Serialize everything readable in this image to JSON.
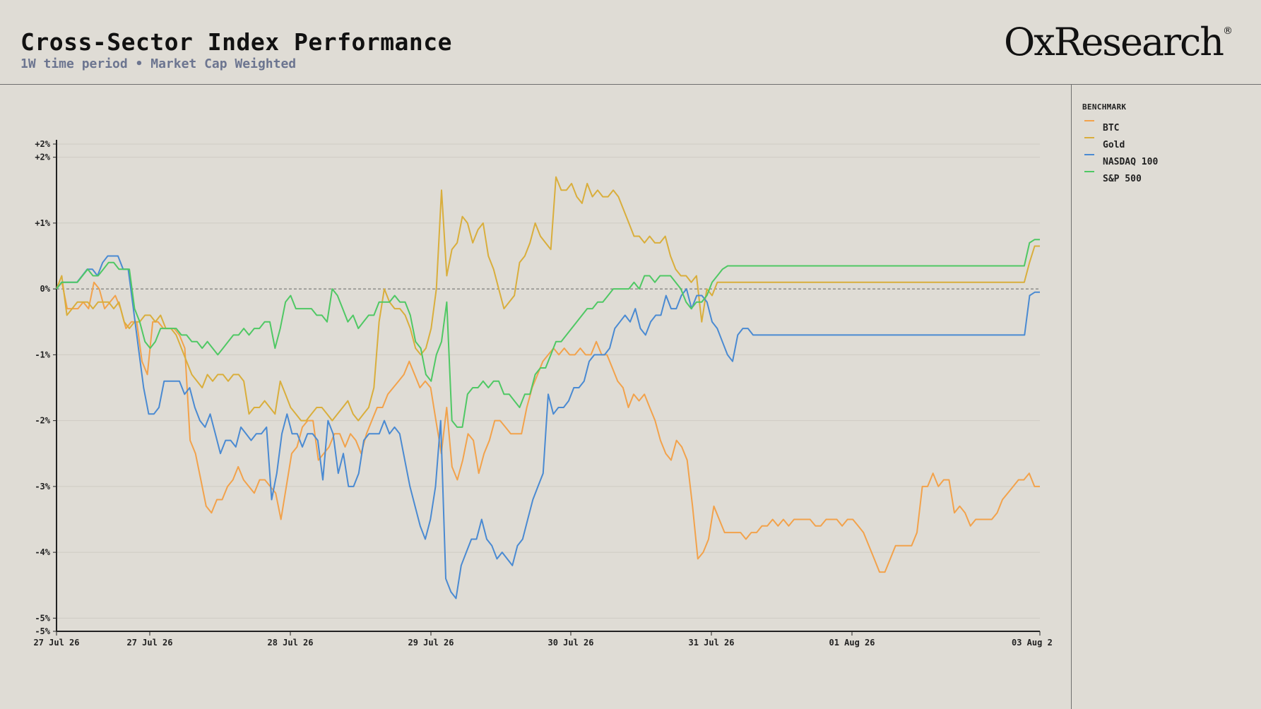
{
  "header": {
    "title": "Cross-Sector Index Performance",
    "subtitle": "1W time period • Market Cap Weighted",
    "logo_text": "OxResearch",
    "logo_mark": "®"
  },
  "legend": {
    "title": "BENCHMARK",
    "items": [
      {
        "label": "BTC",
        "color": "#f2a24b"
      },
      {
        "label": "Gold",
        "color": "#d9ae3c"
      },
      {
        "label": "NASDAQ 100",
        "color": "#4a8ad2"
      },
      {
        "label": "S&P 500",
        "color": "#4fc864"
      }
    ]
  },
  "chart_data": {
    "type": "line",
    "x_ticks": [
      "27 Jul 26",
      "27 Jul 26",
      "28 Jul 26",
      "29 Jul 26",
      "30 Jul 26",
      "31 Jul 26",
      "01 Aug 26",
      "03 Aug 2"
    ],
    "y_ticks": [
      {
        "value": 2.2,
        "label": "+2%"
      },
      {
        "value": 2.0,
        "label": "+2%"
      },
      {
        "value": 1.0,
        "label": "+1%"
      },
      {
        "value": 0.0,
        "label": "0%"
      },
      {
        "value": -1.0,
        "label": "-1%"
      },
      {
        "value": -2.0,
        "label": "-2%"
      },
      {
        "value": -3.0,
        "label": "-3%"
      },
      {
        "value": -4.0,
        "label": "-4%"
      },
      {
        "value": -5.0,
        "label": "-5%"
      },
      {
        "value": -5.2,
        "label": "-5%"
      }
    ],
    "ylim": [
      -5.2,
      2.2
    ],
    "zero_line": true,
    "grid": true,
    "legend_placement": "right",
    "series": [
      {
        "name": "BTC",
        "color": "#f2a24b",
        "values": [
          0.0,
          0.1,
          -0.3,
          -0.3,
          -0.3,
          -0.2,
          -0.3,
          0.1,
          0.0,
          -0.3,
          -0.2,
          -0.1,
          -0.3,
          -0.6,
          -0.5,
          -0.5,
          -1.1,
          -1.3,
          -0.5,
          -0.5,
          -0.6,
          -0.6,
          -0.6,
          -0.7,
          -0.9,
          -2.3,
          -2.5,
          -2.9,
          -3.3,
          -3.4,
          -3.2,
          -3.2,
          -3.0,
          -2.9,
          -2.7,
          -2.9,
          -3.0,
          -3.1,
          -2.9,
          -2.9,
          -3.0,
          -3.1,
          -3.5,
          -3.0,
          -2.5,
          -2.4,
          -2.1,
          -2.0,
          -2.0,
          -2.6,
          -2.5,
          -2.4,
          -2.2,
          -2.2,
          -2.4,
          -2.2,
          -2.3,
          -2.5,
          -2.2,
          -2.0,
          -1.8,
          -1.8,
          -1.6,
          -1.5,
          -1.4,
          -1.3,
          -1.1,
          -1.3,
          -1.5,
          -1.4,
          -1.5,
          -2.0,
          -2.5,
          -1.8,
          -2.7,
          -2.9,
          -2.6,
          -2.2,
          -2.3,
          -2.8,
          -2.5,
          -2.3,
          -2.0,
          -2.0,
          -2.1,
          -2.2,
          -2.2,
          -2.2,
          -1.8,
          -1.5,
          -1.3,
          -1.1,
          -1.0,
          -0.9,
          -1.0,
          -0.9,
          -1.0,
          -1.0,
          -0.9,
          -1.0,
          -1.0,
          -0.8,
          -1.0,
          -1.0,
          -1.2,
          -1.4,
          -1.5,
          -1.8,
          -1.6,
          -1.7,
          -1.6,
          -1.8,
          -2.0,
          -2.3,
          -2.5,
          -2.6,
          -2.3,
          -2.4,
          -2.6,
          -3.3,
          -4.1,
          -4.0,
          -3.8,
          -3.3,
          -3.5,
          -3.7,
          -3.7,
          -3.7,
          -3.7,
          -3.8,
          -3.7,
          -3.7,
          -3.6,
          -3.6,
          -3.5,
          -3.6,
          -3.5,
          -3.6,
          -3.5,
          -3.5,
          -3.5,
          -3.5,
          -3.6,
          -3.6,
          -3.5,
          -3.5,
          -3.5,
          -3.6,
          -3.5,
          -3.5,
          -3.6,
          -3.7,
          -3.9,
          -4.1,
          -4.3,
          -4.3,
          -4.1,
          -3.9,
          -3.9,
          -3.9,
          -3.9,
          -3.7,
          -3.0,
          -3.0,
          -2.8,
          -3.0,
          -2.9,
          -2.9,
          -3.4,
          -3.3,
          -3.4,
          -3.6,
          -3.5,
          -3.5,
          -3.5,
          -3.5,
          -3.4,
          -3.2,
          -3.1,
          -3.0,
          -2.9,
          -2.9,
          -2.8,
          -3.0,
          -3.0
        ]
      },
      {
        "name": "Gold",
        "color": "#d9ae3c",
        "values": [
          0.0,
          0.2,
          -0.4,
          -0.3,
          -0.2,
          -0.2,
          -0.2,
          -0.3,
          -0.2,
          -0.2,
          -0.2,
          -0.3,
          -0.2,
          -0.5,
          -0.6,
          -0.5,
          -0.5,
          -0.4,
          -0.4,
          -0.5,
          -0.4,
          -0.6,
          -0.6,
          -0.7,
          -0.9,
          -1.1,
          -1.3,
          -1.4,
          -1.5,
          -1.3,
          -1.4,
          -1.3,
          -1.3,
          -1.4,
          -1.3,
          -1.3,
          -1.4,
          -1.9,
          -1.8,
          -1.8,
          -1.7,
          -1.8,
          -1.9,
          -1.4,
          -1.6,
          -1.8,
          -1.9,
          -2.0,
          -2.0,
          -1.9,
          -1.8,
          -1.8,
          -1.9,
          -2.0,
          -1.9,
          -1.8,
          -1.7,
          -1.9,
          -2.0,
          -1.9,
          -1.8,
          -1.5,
          -0.5,
          0.0,
          -0.2,
          -0.3,
          -0.3,
          -0.4,
          -0.6,
          -0.9,
          -1.0,
          -0.9,
          -0.6,
          0.0,
          1.5,
          0.2,
          0.6,
          0.7,
          1.1,
          1.0,
          0.7,
          0.9,
          1.0,
          0.5,
          0.3,
          0.0,
          -0.3,
          -0.2,
          -0.1,
          0.4,
          0.5,
          0.7,
          1.0,
          0.8,
          0.7,
          0.6,
          1.7,
          1.5,
          1.5,
          1.6,
          1.4,
          1.3,
          1.6,
          1.4,
          1.5,
          1.4,
          1.4,
          1.5,
          1.4,
          1.2,
          1.0,
          0.8,
          0.8,
          0.7,
          0.8,
          0.7,
          0.7,
          0.8,
          0.5,
          0.3,
          0.2,
          0.2,
          0.1,
          0.2,
          -0.5,
          0.0,
          -0.1,
          0.1,
          0.1,
          0.1,
          0.1,
          0.1,
          0.1,
          0.1,
          0.1,
          0.1,
          0.1,
          0.1,
          0.1,
          0.1,
          0.1,
          0.1,
          0.1,
          0.1,
          0.1,
          0.1,
          0.1,
          0.1,
          0.1,
          0.1,
          0.1,
          0.1,
          0.1,
          0.1,
          0.1,
          0.1,
          0.1,
          0.1,
          0.1,
          0.1,
          0.1,
          0.1,
          0.1,
          0.1,
          0.1,
          0.1,
          0.1,
          0.1,
          0.1,
          0.1,
          0.1,
          0.1,
          0.1,
          0.1,
          0.1,
          0.1,
          0.1,
          0.1,
          0.1,
          0.1,
          0.1,
          0.1,
          0.1,
          0.1,
          0.1,
          0.1,
          0.1,
          0.4,
          0.65,
          0.65
        ]
      },
      {
        "name": "NASDAQ 100",
        "color": "#4a8ad2",
        "values": [
          0.0,
          0.1,
          0.1,
          0.1,
          0.1,
          0.2,
          0.3,
          0.3,
          0.2,
          0.4,
          0.5,
          0.5,
          0.5,
          0.3,
          0.3,
          -0.3,
          -0.9,
          -1.5,
          -1.9,
          -1.9,
          -1.8,
          -1.4,
          -1.4,
          -1.4,
          -1.4,
          -1.6,
          -1.5,
          -1.8,
          -2.0,
          -2.1,
          -1.9,
          -2.2,
          -2.5,
          -2.3,
          -2.3,
          -2.4,
          -2.1,
          -2.2,
          -2.3,
          -2.2,
          -2.2,
          -2.1,
          -3.2,
          -2.8,
          -2.2,
          -1.9,
          -2.2,
          -2.2,
          -2.4,
          -2.2,
          -2.2,
          -2.3,
          -2.9,
          -2.0,
          -2.2,
          -2.8,
          -2.5,
          -3.0,
          -3.0,
          -2.8,
          -2.3,
          -2.2,
          -2.2,
          -2.2,
          -2.0,
          -2.2,
          -2.1,
          -2.2,
          -2.6,
          -3.0,
          -3.3,
          -3.6,
          -3.8,
          -3.5,
          -3.0,
          -2.0,
          -4.4,
          -4.6,
          -4.7,
          -4.2,
          -4.0,
          -3.8,
          -3.8,
          -3.5,
          -3.8,
          -3.9,
          -4.1,
          -4.0,
          -4.1,
          -4.2,
          -3.9,
          -3.8,
          -3.5,
          -3.2,
          -3.0,
          -2.8,
          -1.6,
          -1.9,
          -1.8,
          -1.8,
          -1.7,
          -1.5,
          -1.5,
          -1.4,
          -1.1,
          -1.0,
          -1.0,
          -1.0,
          -0.9,
          -0.6,
          -0.5,
          -0.4,
          -0.5,
          -0.3,
          -0.6,
          -0.7,
          -0.5,
          -0.4,
          -0.4,
          -0.1,
          -0.3,
          -0.3,
          -0.1,
          0.0,
          -0.3,
          -0.1,
          -0.1,
          -0.2,
          -0.5,
          -0.6,
          -0.8,
          -1.0,
          -1.1,
          -0.7,
          -0.6,
          -0.6,
          -0.7,
          -0.7,
          -0.7,
          -0.7,
          -0.7,
          -0.7,
          -0.7,
          -0.7,
          -0.7,
          -0.7,
          -0.7,
          -0.7,
          -0.7,
          -0.7,
          -0.7,
          -0.7,
          -0.7,
          -0.7,
          -0.7,
          -0.7,
          -0.7,
          -0.7,
          -0.7,
          -0.7,
          -0.7,
          -0.7,
          -0.7,
          -0.7,
          -0.7,
          -0.7,
          -0.7,
          -0.7,
          -0.7,
          -0.7,
          -0.7,
          -0.7,
          -0.7,
          -0.7,
          -0.7,
          -0.7,
          -0.7,
          -0.7,
          -0.7,
          -0.7,
          -0.7,
          -0.7,
          -0.7,
          -0.7,
          -0.7,
          -0.7,
          -0.7,
          -0.7,
          -0.7,
          -0.7,
          -0.1,
          -0.05,
          -0.05
        ]
      },
      {
        "name": "S&P 500",
        "color": "#4fc864",
        "values": [
          0.0,
          0.1,
          0.1,
          0.1,
          0.1,
          0.2,
          0.3,
          0.2,
          0.2,
          0.3,
          0.4,
          0.4,
          0.3,
          0.3,
          0.3,
          -0.3,
          -0.5,
          -0.8,
          -0.9,
          -0.8,
          -0.6,
          -0.6,
          -0.6,
          -0.6,
          -0.7,
          -0.7,
          -0.8,
          -0.8,
          -0.9,
          -0.8,
          -0.9,
          -1.0,
          -0.9,
          -0.8,
          -0.7,
          -0.7,
          -0.6,
          -0.7,
          -0.6,
          -0.6,
          -0.5,
          -0.5,
          -0.9,
          -0.6,
          -0.2,
          -0.1,
          -0.3,
          -0.3,
          -0.3,
          -0.3,
          -0.4,
          -0.4,
          -0.5,
          0.0,
          -0.1,
          -0.3,
          -0.5,
          -0.4,
          -0.6,
          -0.5,
          -0.4,
          -0.4,
          -0.2,
          -0.2,
          -0.2,
          -0.1,
          -0.2,
          -0.2,
          -0.4,
          -0.8,
          -0.9,
          -1.3,
          -1.4,
          -1.0,
          -0.8,
          -0.2,
          -2.0,
          -2.1,
          -2.1,
          -1.6,
          -1.5,
          -1.5,
          -1.4,
          -1.5,
          -1.4,
          -1.4,
          -1.6,
          -1.6,
          -1.7,
          -1.8,
          -1.6,
          -1.6,
          -1.3,
          -1.2,
          -1.2,
          -1.0,
          -0.8,
          -0.8,
          -0.7,
          -0.6,
          -0.5,
          -0.4,
          -0.3,
          -0.3,
          -0.2,
          -0.2,
          -0.1,
          0.0,
          0.0,
          0.0,
          0.0,
          0.1,
          0.0,
          0.2,
          0.2,
          0.1,
          0.2,
          0.2,
          0.2,
          0.1,
          0.0,
          -0.2,
          -0.3,
          -0.2,
          -0.2,
          -0.1,
          0.1,
          0.2,
          0.3,
          0.35,
          0.35,
          0.35,
          0.35,
          0.35,
          0.35,
          0.35,
          0.35,
          0.35,
          0.35,
          0.35,
          0.35,
          0.35,
          0.35,
          0.35,
          0.35,
          0.35,
          0.35,
          0.35,
          0.35,
          0.35,
          0.35,
          0.35,
          0.35,
          0.35,
          0.35,
          0.35,
          0.35,
          0.35,
          0.35,
          0.35,
          0.35,
          0.35,
          0.35,
          0.35,
          0.35,
          0.35,
          0.35,
          0.35,
          0.35,
          0.35,
          0.35,
          0.35,
          0.35,
          0.35,
          0.35,
          0.35,
          0.35,
          0.35,
          0.35,
          0.35,
          0.35,
          0.35,
          0.35,
          0.35,
          0.35,
          0.35,
          0.35,
          0.7,
          0.75,
          0.75
        ]
      }
    ]
  }
}
